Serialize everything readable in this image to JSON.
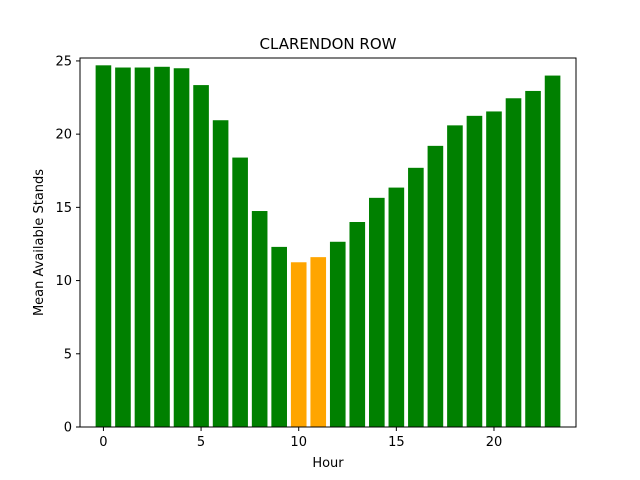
{
  "chart_data": {
    "type": "bar",
    "title": "CLARENDON ROW",
    "xlabel": "Hour",
    "ylabel": "Mean Available Stands",
    "x": [
      0,
      1,
      2,
      3,
      4,
      5,
      6,
      7,
      8,
      9,
      10,
      11,
      12,
      13,
      14,
      15,
      16,
      17,
      18,
      19,
      20,
      21,
      22,
      23
    ],
    "values": [
      24.7,
      24.55,
      24.55,
      24.6,
      24.5,
      23.35,
      20.95,
      18.4,
      14.75,
      12.3,
      11.25,
      11.6,
      12.65,
      14.0,
      15.65,
      16.35,
      17.7,
      19.2,
      20.6,
      21.25,
      21.55,
      22.45,
      22.95,
      24.0
    ],
    "highlighted": [
      10,
      11
    ],
    "colors": {
      "default": "#008000",
      "highlight": "#ffa500"
    },
    "xlim": [
      -1.2,
      24.2
    ],
    "ylim": [
      0,
      25.2
    ],
    "xticks": [
      0,
      5,
      10,
      15,
      20
    ],
    "yticks": [
      0,
      5,
      10,
      15,
      20,
      25
    ],
    "grid": false,
    "legend": "none"
  }
}
